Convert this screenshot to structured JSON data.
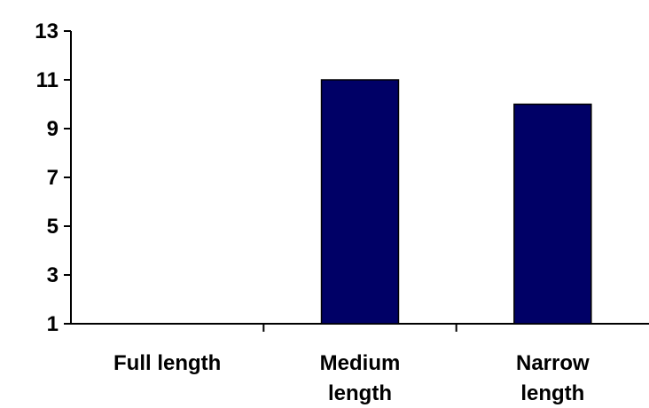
{
  "chart_data": {
    "type": "bar",
    "title": "",
    "xlabel": "",
    "ylabel": "",
    "categories": [
      [
        "Full length"
      ],
      [
        "Medium",
        "length"
      ],
      [
        "Narrow",
        "length"
      ]
    ],
    "values": [
      1,
      11,
      10
    ],
    "ylim": [
      1,
      13
    ],
    "yticks": [
      1,
      3,
      5,
      7,
      9,
      11,
      13
    ],
    "grid": false,
    "legend": "none",
    "bar_color": "#000066",
    "bar_edge_color": "#000000"
  }
}
